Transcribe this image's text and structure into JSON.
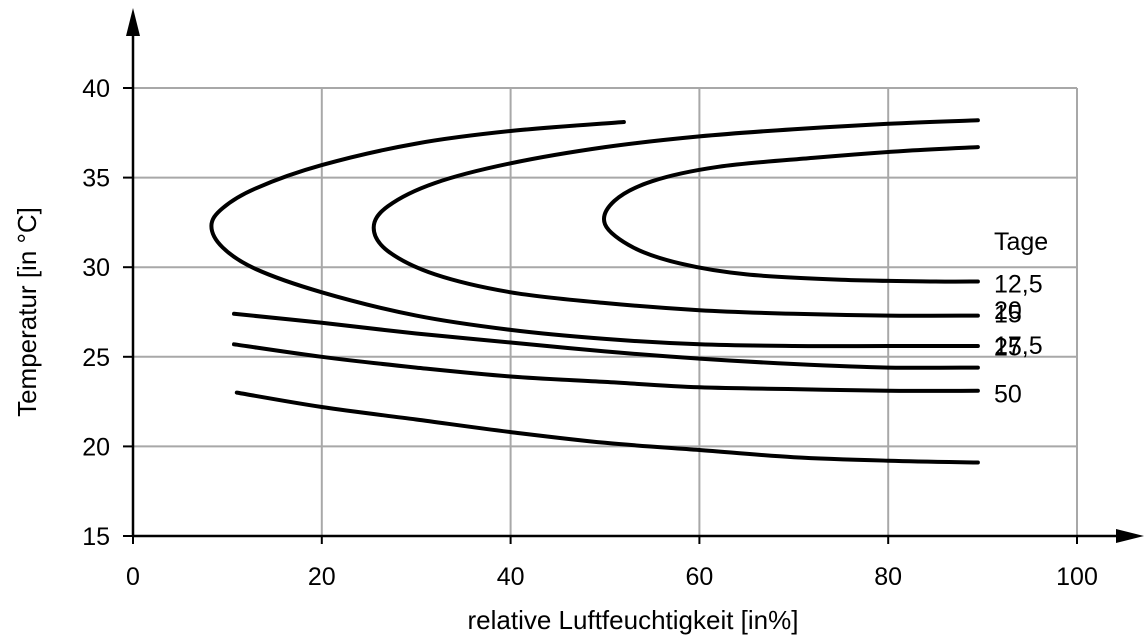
{
  "chart_data": {
    "type": "line",
    "xlabel": "relative Luftfeuchtigkeit [in%]",
    "ylabel": "Temperatur [in °C]",
    "xlim": [
      0,
      100
    ],
    "ylim": [
      15,
      40
    ],
    "x_ticks": [
      "0",
      "20",
      "40",
      "60",
      "80",
      "100"
    ],
    "y_ticks": [
      "15",
      "20",
      "25",
      "30",
      "35",
      "40"
    ],
    "grid": true,
    "legend_title": "Tage",
    "series": [
      {
        "name": "12,5",
        "x": [
          89.5,
          85,
          75,
          65,
          58,
          53,
          50,
          51,
          55,
          62,
          72,
          82,
          89.5
        ],
        "y": [
          29.2,
          29.2,
          29.3,
          29.6,
          30.2,
          31.1,
          32.4,
          33.7,
          34.8,
          35.6,
          36.1,
          36.5,
          36.7
        ]
      },
      {
        "name": "15",
        "x": [
          89.5,
          80,
          70,
          60,
          50,
          40,
          32,
          27,
          25.5,
          27,
          32,
          40,
          50,
          60,
          70,
          80,
          89.5
        ],
        "y": [
          27.3,
          27.3,
          27.4,
          27.6,
          28.0,
          28.6,
          29.6,
          30.9,
          32.2,
          33.4,
          34.7,
          35.8,
          36.7,
          37.3,
          37.7,
          38.0,
          38.2
        ]
      },
      {
        "name": "17,5",
        "x": [
          89.5,
          80,
          70,
          60,
          50,
          40,
          30,
          20,
          13,
          9.5,
          8.3,
          9.5,
          13,
          20,
          30,
          40,
          52
        ],
        "y": [
          25.6,
          25.6,
          25.6,
          25.7,
          26.0,
          26.5,
          27.3,
          28.6,
          29.9,
          31.1,
          32.3,
          33.3,
          34.4,
          35.7,
          36.9,
          37.6,
          38.1
        ]
      },
      {
        "name": "20",
        "x": [
          10.7,
          20,
          30,
          40,
          50,
          60,
          70,
          80,
          89.5
        ],
        "y": [
          27.4,
          26.9,
          26.3,
          25.8,
          25.3,
          24.9,
          24.6,
          24.4,
          24.4
        ]
      },
      {
        "name": "25",
        "x": [
          10.7,
          20,
          30,
          40,
          50,
          60,
          70,
          80,
          89.5
        ],
        "y": [
          25.7,
          25.0,
          24.4,
          23.9,
          23.6,
          23.3,
          23.2,
          23.1,
          23.1
        ]
      },
      {
        "name": "50",
        "x": [
          11,
          20,
          30,
          40,
          50,
          60,
          70,
          80,
          89.5
        ],
        "y": [
          23.0,
          22.2,
          21.5,
          20.8,
          20.2,
          19.8,
          19.4,
          19.2,
          19.1
        ]
      }
    ]
  }
}
